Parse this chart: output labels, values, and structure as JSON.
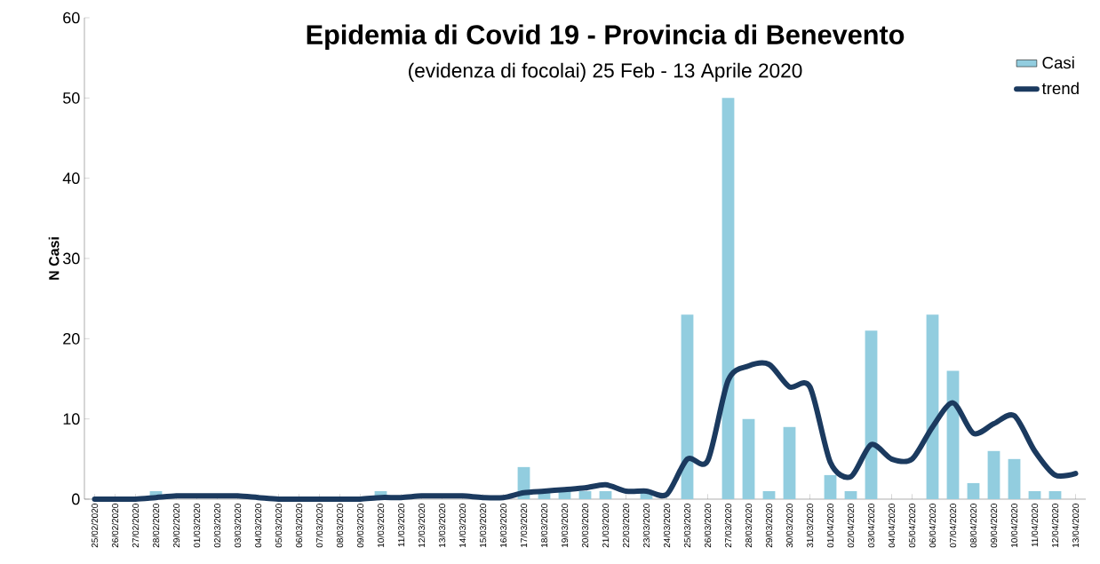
{
  "chart_data": {
    "type": "bar",
    "title": "Epidemia di Covid 19 - Provincia di Benevento",
    "subtitle": "(evidenza di focolai) 25 Feb - 13 Aprile 2020",
    "ylabel": "N Casi",
    "categories": [
      "25/02/2020",
      "26/02/2020",
      "27/02/2020",
      "28/02/2020",
      "29/02/2020",
      "01/03/2020",
      "02/03/2020",
      "03/03/2020",
      "04/03/2020",
      "05/03/2020",
      "06/03/2020",
      "07/03/2020",
      "08/03/2020",
      "09/03/2020",
      "10/03/2020",
      "11/03/2020",
      "12/03/2020",
      "13/03/2020",
      "14/03/2020",
      "15/03/2020",
      "16/03/2020",
      "17/03/2020",
      "18/03/2020",
      "19/03/2020",
      "20/03/2020",
      "21/03/2020",
      "22/03/2020",
      "23/03/2020",
      "24/03/2020",
      "25/03/2020",
      "26/03/2020",
      "27/03/2020",
      "28/03/2020",
      "29/03/2020",
      "30/03/2020",
      "31/03/2020",
      "01/04/2020",
      "02/04/2020",
      "03/04/2020",
      "04/04/2020",
      "05/04/2020",
      "06/04/2020",
      "07/04/2020",
      "08/04/2020",
      "09/04/2020",
      "10/04/2020",
      "11/04/2020",
      "12/04/2020",
      "13/04/2020"
    ],
    "series": [
      {
        "name": "Casi",
        "color": "#92cddf",
        "values": [
          0,
          0,
          0,
          1,
          0,
          0,
          0,
          0,
          0,
          0,
          0,
          0,
          0,
          0,
          1,
          0,
          0,
          0,
          0,
          0,
          0,
          4,
          1,
          1,
          1,
          1,
          0,
          1,
          0,
          23,
          0,
          50,
          10,
          1,
          9,
          0,
          3,
          1,
          21,
          0,
          0,
          23,
          16,
          2,
          6,
          5,
          1,
          1,
          0
        ]
      },
      {
        "name": "trend",
        "type": "line",
        "color": "#1b3a5f",
        "values": [
          0,
          0,
          0,
          0.2,
          0.4,
          0.4,
          0.4,
          0.4,
          0.2,
          0,
          0,
          0,
          0,
          0,
          0.2,
          0.2,
          0.4,
          0.4,
          0.4,
          0.2,
          0.2,
          0.8,
          1,
          1.2,
          1.4,
          1.8,
          1,
          1,
          0.6,
          5,
          4.8,
          14.8,
          16.6,
          16.8,
          14,
          14,
          4.6,
          2.8,
          6.8,
          5,
          5,
          9,
          12,
          8.2,
          9.4,
          10.4,
          6,
          3,
          3.2
        ]
      }
    ],
    "ylim": [
      0,
      60
    ],
    "yticks": [
      0,
      10,
      20,
      30,
      40,
      50,
      60
    ],
    "legend": "top right"
  }
}
